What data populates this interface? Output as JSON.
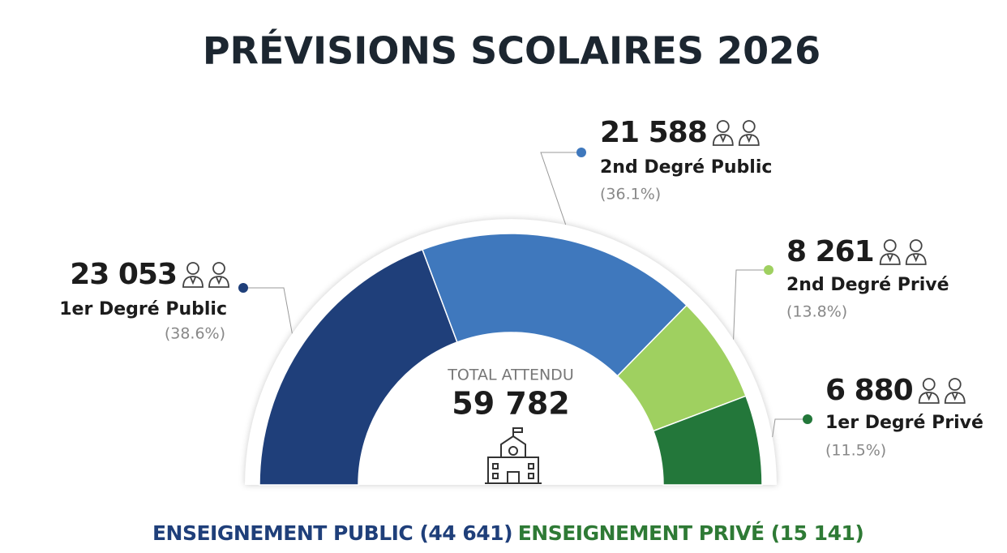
{
  "chart_data": {
    "type": "pie",
    "title": "PRÉVISIONS SCOLAIRES 2026",
    "categories": [
      "1er Degré Public",
      "2nd Degré Public",
      "2nd Degré Privé",
      "1er Degré Privé"
    ],
    "values": [
      23053,
      21588,
      8261,
      6880
    ],
    "value_labels": [
      "23 053",
      "21 588",
      "8 261",
      "6 880"
    ],
    "percentages": [
      38.6,
      36.1,
      13.8,
      11.5
    ],
    "percentage_labels": [
      "(38.6%)",
      "(36.1%)",
      "(13.8%)",
      "(11.5%)"
    ],
    "colors": [
      "#1f3f7a",
      "#3f78bd",
      "#9fd060",
      "#23773a"
    ],
    "total_label": "TOTAL ATTENDU",
    "total": 59782,
    "total_value_label": "59 782",
    "groups": [
      {
        "label": "ENSEIGNEMENT PUBLIC (44 641)",
        "value": 44641,
        "color": "#1f3f7a"
      },
      {
        "label": "ENSEIGNEMENT PRIVÉ (15 141)",
        "value": 15141,
        "color": "#2e7a35"
      }
    ]
  }
}
